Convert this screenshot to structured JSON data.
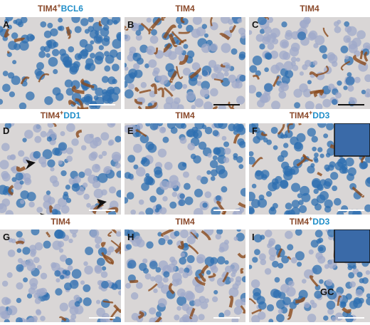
{
  "panels": [
    {
      "letter": "A",
      "title": "TIM4",
      "sup": "+",
      "marker": "BCL6"
    },
    {
      "letter": "B",
      "title": "TIM4"
    },
    {
      "letter": "C",
      "title": "TIM4"
    },
    {
      "letter": "D",
      "title": "TIM4",
      "sup": "+",
      "marker": "DD1"
    },
    {
      "letter": "E",
      "title": "TIM4"
    },
    {
      "letter": "F",
      "title": "TIM4",
      "sup": "+",
      "marker": "DD3"
    },
    {
      "letter": "G",
      "title": "TIM4"
    },
    {
      "letter": "H",
      "title": "TIM4"
    },
    {
      "letter": "I",
      "title": "TIM4",
      "sup": "+",
      "marker": "DD3",
      "label": "GC"
    }
  ]
}
